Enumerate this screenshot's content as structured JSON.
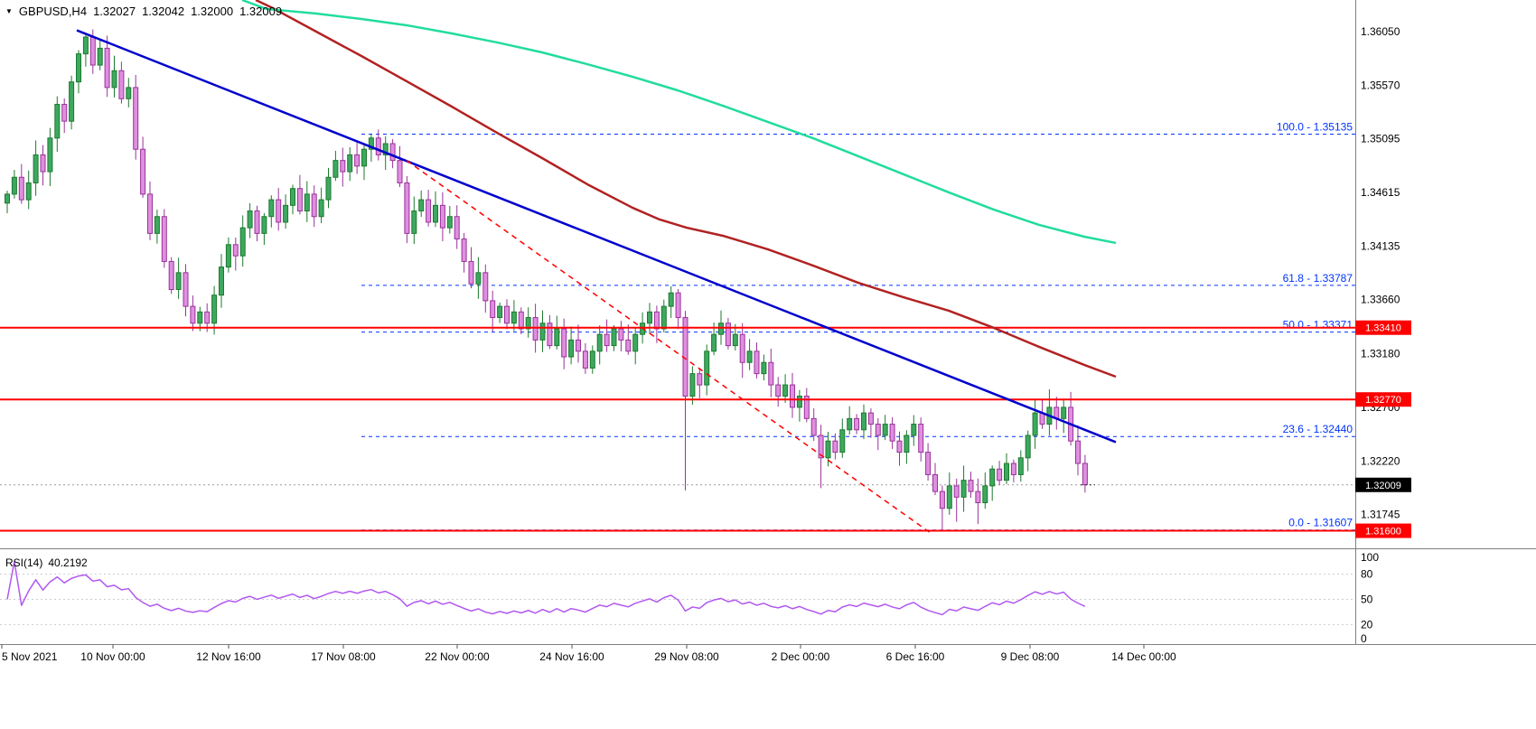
{
  "header": {
    "collapse_icon": "▼",
    "symbol": "GBPUSD,H4",
    "open": "1.32027",
    "high": "1.32042",
    "low": "1.32000",
    "close": "1.32009"
  },
  "rsi": {
    "period_label": "RSI(14)",
    "value_label": "40.2192"
  },
  "colors": {
    "bull_fill": "#3da860",
    "bull_stroke": "#1d7a2e",
    "bear_fill": "#df8fdf",
    "bear_stroke": "#993399",
    "ma_green": "#21dc9e",
    "ma_red": "#b22222",
    "trend_blue": "#0000cd",
    "trend_red_dashed": "#ff0000",
    "hline_red": "#ff0000",
    "fib_blue": "#0033ff",
    "rsi_line": "#b158f0",
    "axis_text": "#000000",
    "badge_black": "#000000",
    "badge_text": "#ffffff",
    "current_price_line": "#999999",
    "separator": "#808080",
    "rsi_grid": "#cccccc",
    "tick": "#555555"
  },
  "chart_data": {
    "type": "candlestick",
    "title": "GBPUSD,H4",
    "timeframe": "H4",
    "ohlc_header": [
      1.32027,
      1.32042,
      1.32,
      1.32009
    ],
    "price_axis_labels": [
      [
        "1.36050",
        1.3605
      ],
      [
        "1.35570",
        1.3557
      ],
      [
        "1.35095",
        1.35095
      ],
      [
        "1.34615",
        1.34615
      ],
      [
        "1.34135",
        1.34135
      ],
      [
        "1.33660",
        1.3366
      ],
      [
        "1.33180",
        1.3318
      ],
      [
        "1.32700",
        1.327
      ],
      [
        "1.32220",
        1.3222
      ],
      [
        "1.31745",
        1.31745
      ]
    ],
    "time_axis_labels": [
      [
        "5 Nov 2021",
        2
      ],
      [
        "10 Nov 00:00",
        125
      ],
      [
        "12 Nov 16:00",
        253
      ],
      [
        "17 Nov 08:00",
        380
      ],
      [
        "22 Nov 00:00",
        506
      ],
      [
        "24 Nov 16:00",
        633
      ],
      [
        "29 Nov 08:00",
        760
      ],
      [
        "2 Dec 00:00",
        886
      ],
      [
        "6 Dec 16:00",
        1013
      ],
      [
        "9 Dec 08:00",
        1140
      ],
      [
        "14 Dec 00:00",
        1266
      ]
    ],
    "horizontal_levels": [
      {
        "price": 1.3341,
        "label": "1.33410"
      },
      {
        "price": 1.3277,
        "label": "1.32770"
      },
      {
        "price": 1.316,
        "label": "1.31600"
      }
    ],
    "fibonacci_levels": [
      {
        "label": "100.0 - 1.35135",
        "price": 1.35135
      },
      {
        "label": "61.8 - 1.33787",
        "price": 1.33787
      },
      {
        "label": "50.0 - 1.33371",
        "price": 1.33371
      },
      {
        "label": "23.6 - 1.32440",
        "price": 1.3244
      },
      {
        "label": "0.0 - 1.31607",
        "price": 1.31607
      }
    ],
    "current_price": {
      "price": 1.32009,
      "label": "1.32009"
    },
    "moving_averages": {
      "green": [
        [
          268,
          1.3633
        ],
        [
          295,
          1.3625
        ],
        [
          350,
          1.36209
        ],
        [
          400,
          1.36161
        ],
        [
          450,
          1.36105
        ],
        [
          500,
          1.36032
        ],
        [
          550,
          1.35952
        ],
        [
          600,
          1.35863
        ],
        [
          650,
          1.35758
        ],
        [
          700,
          1.35646
        ],
        [
          750,
          1.35525
        ],
        [
          800,
          1.35388
        ],
        [
          850,
          1.35243
        ],
        [
          900,
          1.35098
        ],
        [
          950,
          1.34938
        ],
        [
          1000,
          1.34777
        ],
        [
          1050,
          1.34616
        ],
        [
          1100,
          1.34462
        ],
        [
          1150,
          1.34326
        ],
        [
          1200,
          1.34221
        ],
        [
          1235,
          1.34165
        ]
      ],
      "red": [
        [
          283,
          1.3633
        ],
        [
          300,
          1.36266
        ],
        [
          350,
          1.36048
        ],
        [
          400,
          1.35831
        ],
        [
          450,
          1.35606
        ],
        [
          500,
          1.3538
        ],
        [
          550,
          1.35147
        ],
        [
          600,
          1.34921
        ],
        [
          650,
          1.34688
        ],
        [
          700,
          1.34479
        ],
        [
          730,
          1.34374
        ],
        [
          760,
          1.34301
        ],
        [
          800,
          1.34229
        ],
        [
          850,
          1.34108
        ],
        [
          900,
          1.33963
        ],
        [
          950,
          1.3381
        ],
        [
          1000,
          1.33681
        ],
        [
          1050,
          1.33561
        ],
        [
          1100,
          1.33408
        ],
        [
          1150,
          1.33239
        ],
        [
          1200,
          1.33078
        ],
        [
          1235,
          1.32973
        ]
      ]
    },
    "trendlines": {
      "blue_solid": [
        [
          85,
          1.3606
        ],
        [
          1235,
          1.3239
        ]
      ],
      "red_dashed": [
        [
          450,
          1.349
        ],
        [
          1030,
          1.3158
        ]
      ]
    },
    "candles": {
      "first_open": 1.3452,
      "closes": [
        1.346,
        1.3475,
        1.3455,
        1.347,
        1.3495,
        1.348,
        1.351,
        1.354,
        1.3525,
        1.356,
        1.3585,
        1.36,
        1.3575,
        1.359,
        1.3555,
        1.357,
        1.3545,
        1.3555,
        1.35,
        1.346,
        1.3425,
        1.344,
        1.34,
        1.3375,
        1.339,
        1.336,
        1.3345,
        1.3355,
        1.3345,
        1.337,
        1.3395,
        1.3415,
        1.3405,
        1.343,
        1.3445,
        1.3425,
        1.344,
        1.3455,
        1.3435,
        1.345,
        1.3465,
        1.3445,
        1.346,
        1.344,
        1.3455,
        1.3475,
        1.349,
        1.348,
        1.3495,
        1.3485,
        1.35,
        1.351,
        1.3495,
        1.3505,
        1.349,
        1.347,
        1.3425,
        1.3445,
        1.3455,
        1.3435,
        1.345,
        1.343,
        1.344,
        1.342,
        1.34,
        1.338,
        1.339,
        1.3365,
        1.335,
        1.336,
        1.3345,
        1.3355,
        1.334,
        1.335,
        1.333,
        1.3345,
        1.3325,
        1.334,
        1.3315,
        1.333,
        1.332,
        1.3305,
        1.332,
        1.3335,
        1.3325,
        1.334,
        1.333,
        1.332,
        1.3335,
        1.3345,
        1.3355,
        1.334,
        1.336,
        1.3372,
        1.335,
        1.328,
        1.33,
        1.329,
        1.332,
        1.3335,
        1.3345,
        1.3325,
        1.3335,
        1.331,
        1.332,
        1.33,
        1.331,
        1.329,
        1.328,
        1.329,
        1.327,
        1.328,
        1.326,
        1.3245,
        1.3225,
        1.324,
        1.323,
        1.325,
        1.326,
        1.325,
        1.3265,
        1.3255,
        1.3245,
        1.3255,
        1.324,
        1.323,
        1.3245,
        1.3255,
        1.323,
        1.321,
        1.3195,
        1.318,
        1.32,
        1.319,
        1.3205,
        1.3195,
        1.3185,
        1.32,
        1.3215,
        1.3205,
        1.322,
        1.321,
        1.3225,
        1.3245,
        1.3265,
        1.3255,
        1.327,
        1.326,
        1.327,
        1.324,
        1.322,
        1.3201
      ],
      "wick_highs": {
        "11": 1.3604,
        "51": 1.3513,
        "93": 1.3378,
        "146": 1.3286
      },
      "wick_lows": {
        "26": 1.3338,
        "95": 1.3196,
        "114": 1.3198,
        "131": 1.3161,
        "133": 1.3168,
        "136": 1.3166
      }
    },
    "rsi_indicator": {
      "period": 14,
      "current_value": 40.2192,
      "axis_labels": [
        100,
        80,
        50,
        20,
        0
      ],
      "level_lines": [
        80,
        50,
        20
      ]
    }
  }
}
